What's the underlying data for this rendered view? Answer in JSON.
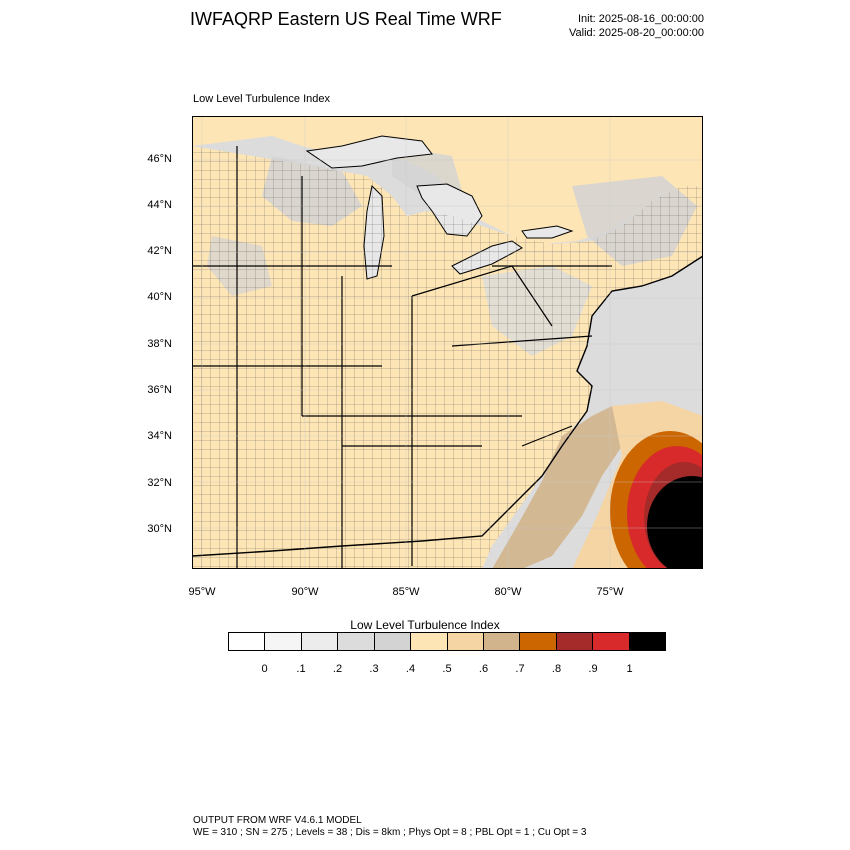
{
  "header": {
    "title": "IWFAQRP Eastern US Real Time WRF",
    "init": "Init: 2025-08-16_00:00:00",
    "valid": "Valid: 2025-08-20_00:00:00"
  },
  "map": {
    "field_label": "Low Level Turbulence Index",
    "lat_labels": [
      "46°N",
      "44°N",
      "42°N",
      "40°N",
      "38°N",
      "36°N",
      "34°N",
      "32°N",
      "30°N"
    ],
    "lon_labels": [
      "95°W",
      "90°W",
      "85°W",
      "80°W",
      "75°W"
    ],
    "colors": {
      "land": "#fde5b5",
      "water": "#dcdcdc",
      "lake": "#e8e8e8",
      "high": "#d2b48c",
      "orange": "#cc6600",
      "red": "#cc2a2a",
      "core": "#000000",
      "border": "#000000"
    }
  },
  "legend": {
    "title": "Low Level Turbulence Index",
    "colors": [
      "#ffffff",
      "#f5f5f5",
      "#ececec",
      "#dcdcdc",
      "#d3d3d3",
      "#fde5b5",
      "#f5d5a4",
      "#d2b48c",
      "#cc6600",
      "#a52a2a",
      "#d82a2a",
      "#000000"
    ],
    "ticks": [
      "0",
      ".1",
      ".2",
      ".3",
      ".4",
      ".5",
      ".6",
      ".7",
      ".8",
      ".9",
      "1"
    ]
  },
  "footer": {
    "line1": "OUTPUT FROM WRF V4.6.1 MODEL",
    "line2": "WE = 310 ; SN = 275 ; Levels = 38 ; Dis = 8km ; Phys Opt = 8 ; PBL Opt = 1 ; Cu Opt = 3"
  }
}
